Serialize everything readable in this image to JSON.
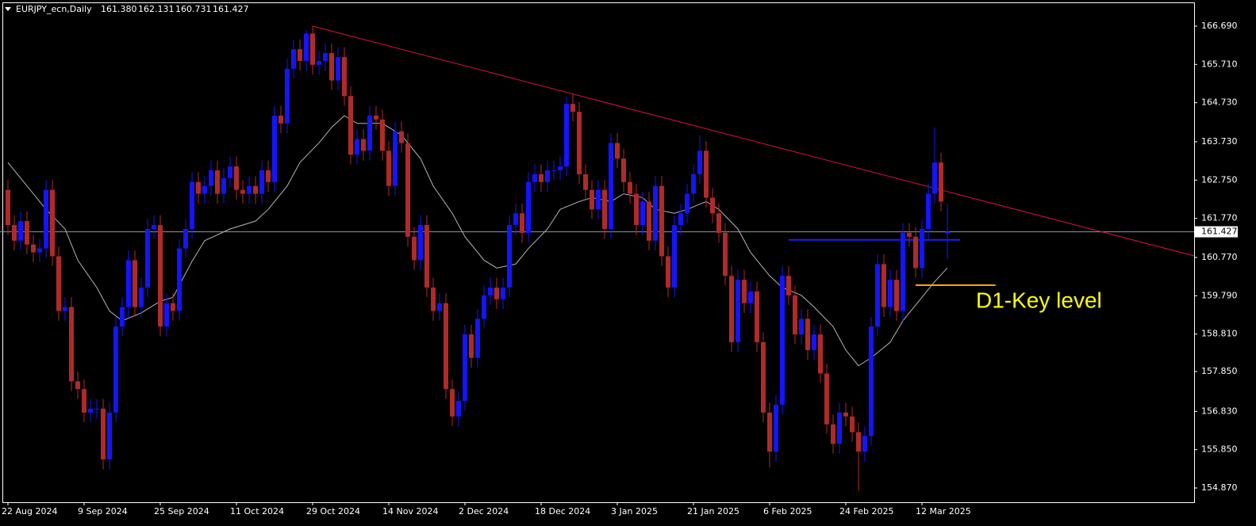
{
  "chart_data": {
    "type": "candlestick",
    "title": "EURJPY_ecn,Daily",
    "ohlc_labels": [
      "161.380",
      "162.131",
      "160.731",
      "161.427"
    ],
    "annotation": "D1-Key level",
    "categories": [
      "22 Aug 2024",
      null,
      null,
      null,
      null,
      null,
      null,
      null,
      null,
      null,
      null,
      null,
      "9 Sep 2024",
      null,
      null,
      null,
      null,
      null,
      null,
      null,
      null,
      null,
      null,
      null,
      "25 Sep 2024",
      null,
      null,
      null,
      null,
      null,
      null,
      null,
      null,
      null,
      null,
      null,
      "11 Oct 2024",
      null,
      null,
      null,
      null,
      null,
      null,
      null,
      null,
      null,
      null,
      null,
      "29 Oct 2024",
      null,
      null,
      null,
      null,
      null,
      null,
      null,
      null,
      null,
      null,
      null,
      "14 Nov 2024",
      null,
      null,
      null,
      null,
      null,
      null,
      null,
      null,
      null,
      null,
      null,
      "2 Dec 2024",
      null,
      null,
      null,
      null,
      null,
      null,
      null,
      null,
      null,
      null,
      null,
      "18 Dec 2024",
      null,
      null,
      null,
      null,
      null,
      null,
      null,
      null,
      null,
      null,
      null,
      "3 Jan 2025",
      null,
      null,
      null,
      null,
      null,
      null,
      null,
      null,
      null,
      null,
      null,
      "21 Jan 2025",
      null,
      null,
      null,
      null,
      null,
      null,
      null,
      null,
      null,
      null,
      null,
      "6 Feb 2025",
      null,
      null,
      null,
      null,
      null,
      null,
      null,
      null,
      null,
      null,
      null,
      "24 Feb 2025",
      null,
      null,
      null,
      null,
      null,
      null,
      null,
      null,
      null,
      null,
      null,
      "12 Mar 2025",
      null,
      null,
      null,
      null
    ],
    "open": [
      162.5,
      161.6,
      161.2,
      161.7,
      161.1,
      160.9,
      161.0,
      162.5,
      160.8,
      159.4,
      159.5,
      157.6,
      157.4,
      156.8,
      156.9,
      156.9,
      155.6,
      156.8,
      159.0,
      159.5,
      160.7,
      159.5,
      160.0,
      161.5,
      161.6,
      159.0,
      159.6,
      159.4,
      161.0,
      161.5,
      162.7,
      162.4,
      162.6,
      163.0,
      162.4,
      162.8,
      163.1,
      162.5,
      162.4,
      162.6,
      162.4,
      163.0,
      162.7,
      164.4,
      164.2,
      165.6,
      166.1,
      165.8,
      166.5,
      165.7,
      165.8,
      166.0,
      165.3,
      165.9,
      164.9,
      163.4,
      163.8,
      163.5,
      164.4,
      164.3,
      163.5,
      162.6,
      164.0,
      163.7,
      161.3,
      160.7,
      161.6,
      160.0,
      159.4,
      159.6,
      157.4,
      156.7,
      157.1,
      158.8,
      158.2,
      159.2,
      159.8,
      160.0,
      159.7,
      160.0,
      161.6,
      161.9,
      161.4,
      162.7,
      162.9,
      162.7,
      163.0,
      163.0,
      163.1,
      164.7,
      164.5,
      162.9,
      162.5,
      162.0,
      162.5,
      161.5,
      163.7,
      163.3,
      162.7,
      162.4,
      161.6,
      162.2,
      161.2,
      162.6,
      160.8,
      160.0,
      161.6,
      161.9,
      162.4,
      162.9,
      163.5,
      162.3,
      161.9,
      161.4,
      160.3,
      158.6,
      160.2,
      159.6,
      159.9,
      158.6,
      156.8,
      155.8,
      157.0,
      160.3,
      159.8,
      158.8,
      159.2,
      158.4,
      158.8,
      157.8,
      156.5,
      156.0,
      156.8,
      156.7,
      156.3,
      155.8,
      156.2,
      159.0,
      160.6,
      159.5,
      160.2,
      159.4,
      161.4,
      161.3,
      160.5,
      161.5,
      162.4,
      163.2,
      161.38
    ],
    "high": [
      162.75,
      161.85,
      161.95,
      161.95,
      161.35,
      161.25,
      162.75,
      162.75,
      161.05,
      159.75,
      159.75,
      157.85,
      157.65,
      157.15,
      157.15,
      157.15,
      157.05,
      159.25,
      159.75,
      160.95,
      160.95,
      160.25,
      161.75,
      161.85,
      161.85,
      159.85,
      159.85,
      161.25,
      161.75,
      162.95,
      162.95,
      162.85,
      163.25,
      163.25,
      163.05,
      163.35,
      163.35,
      162.75,
      162.85,
      162.85,
      163.25,
      163.25,
      164.65,
      164.65,
      165.85,
      166.35,
      166.35,
      166.6,
      166.69,
      166.05,
      166.25,
      166.25,
      166.15,
      166.15,
      165.15,
      164.05,
      164.05,
      164.65,
      164.65,
      164.55,
      163.75,
      164.25,
      164.25,
      163.95,
      161.55,
      161.85,
      161.85,
      160.25,
      159.85,
      159.85,
      157.65,
      157.35,
      159.05,
      159.05,
      159.45,
      160.05,
      160.25,
      160.25,
      160.25,
      161.85,
      162.15,
      162.15,
      162.95,
      163.15,
      163.15,
      163.25,
      163.25,
      163.35,
      164.9,
      164.95,
      164.75,
      163.15,
      162.75,
      162.75,
      162.75,
      163.95,
      163.95,
      163.55,
      162.95,
      162.65,
      162.45,
      162.45,
      162.85,
      162.85,
      161.05,
      161.85,
      162.15,
      162.65,
      163.15,
      163.9,
      163.75,
      162.55,
      162.15,
      161.65,
      160.55,
      160.45,
      160.45,
      160.15,
      160.15,
      158.85,
      157.05,
      157.25,
      160.55,
      160.55,
      160.05,
      159.45,
      159.45,
      159.05,
      159.05,
      158.05,
      156.75,
      157.05,
      157.05,
      156.95,
      156.55,
      156.45,
      159.25,
      160.85,
      160.85,
      160.45,
      160.45,
      161.65,
      161.65,
      161.55,
      161.75,
      162.65,
      164.1,
      163.45,
      162.131
    ],
    "low": [
      161.35,
      160.95,
      160.95,
      160.85,
      160.65,
      160.65,
      160.75,
      160.55,
      159.15,
      159.15,
      157.35,
      157.15,
      156.55,
      156.55,
      156.65,
      155.35,
      155.35,
      156.55,
      158.75,
      159.25,
      159.25,
      159.25,
      159.75,
      161.25,
      158.75,
      158.75,
      159.15,
      159.15,
      160.75,
      161.25,
      162.15,
      162.15,
      162.35,
      162.15,
      162.15,
      162.55,
      162.25,
      162.15,
      162.15,
      162.15,
      162.15,
      162.45,
      162.45,
      163.95,
      163.95,
      165.35,
      165.55,
      165.55,
      165.45,
      165.45,
      165.55,
      165.05,
      165.05,
      164.65,
      163.15,
      163.15,
      163.25,
      163.25,
      164.05,
      163.25,
      162.35,
      162.35,
      163.45,
      161.05,
      160.45,
      160.45,
      159.75,
      159.15,
      159.15,
      157.15,
      156.45,
      156.45,
      156.85,
      157.95,
      157.95,
      158.95,
      159.55,
      159.45,
      159.45,
      159.75,
      161.35,
      161.15,
      161.15,
      162.45,
      162.45,
      162.45,
      162.75,
      162.75,
      162.85,
      164.25,
      162.65,
      162.25,
      161.75,
      161.75,
      161.25,
      161.25,
      163.05,
      162.45,
      162.15,
      161.35,
      161.35,
      160.95,
      160.95,
      160.55,
      159.75,
      159.75,
      161.35,
      161.65,
      162.15,
      162.65,
      162.05,
      161.65,
      161.15,
      160.05,
      158.35,
      158.35,
      159.35,
      159.35,
      158.35,
      156.55,
      155.4,
      155.55,
      156.75,
      159.55,
      158.55,
      158.55,
      158.15,
      158.15,
      157.55,
      156.25,
      155.75,
      155.75,
      156.45,
      156.05,
      154.8,
      155.55,
      155.95,
      158.75,
      159.25,
      159.25,
      159.15,
      159.15,
      161.05,
      160.25,
      160.25,
      161.25,
      162.15,
      161.95,
      160.731
    ],
    "close": [
      161.6,
      161.2,
      161.7,
      161.1,
      160.9,
      161.0,
      162.5,
      160.8,
      159.4,
      159.5,
      157.6,
      157.4,
      156.8,
      156.9,
      156.9,
      155.6,
      156.8,
      159.0,
      159.5,
      160.7,
      159.5,
      160.0,
      161.5,
      161.6,
      159.0,
      159.6,
      159.4,
      161.0,
      161.5,
      162.7,
      162.4,
      162.6,
      163.0,
      162.4,
      162.8,
      163.1,
      162.5,
      162.4,
      162.6,
      162.4,
      163.0,
      162.7,
      164.4,
      164.2,
      165.6,
      166.1,
      165.8,
      166.5,
      165.7,
      165.8,
      166.0,
      165.3,
      165.9,
      164.9,
      163.4,
      163.8,
      163.5,
      164.4,
      164.3,
      163.5,
      162.6,
      164.0,
      163.7,
      161.3,
      160.7,
      161.6,
      160.0,
      159.4,
      159.6,
      157.4,
      156.7,
      157.1,
      158.8,
      158.2,
      159.2,
      159.8,
      160.0,
      159.7,
      160.0,
      161.6,
      161.9,
      161.4,
      162.7,
      162.9,
      162.7,
      163.0,
      163.0,
      163.1,
      164.7,
      164.5,
      162.9,
      162.5,
      162.0,
      162.5,
      161.5,
      163.7,
      163.3,
      162.7,
      162.4,
      161.6,
      162.2,
      161.2,
      162.6,
      160.8,
      160.0,
      161.6,
      161.9,
      162.4,
      162.9,
      163.5,
      162.3,
      161.9,
      161.4,
      160.3,
      158.6,
      160.2,
      159.6,
      159.9,
      158.6,
      156.8,
      155.8,
      157.0,
      160.3,
      159.8,
      158.8,
      159.2,
      158.4,
      158.8,
      157.8,
      156.5,
      156.0,
      156.8,
      156.7,
      156.3,
      155.8,
      156.2,
      159.0,
      160.6,
      159.5,
      160.2,
      159.4,
      161.4,
      161.3,
      160.5,
      161.5,
      162.4,
      163.2,
      162.2,
      161.427
    ],
    "up_color": "#1414ff",
    "down_color": "#b02a2a",
    "moving_average": {
      "color": "#b4b4b4",
      "x": [
        0,
        4,
        6,
        9,
        11,
        14,
        16,
        18,
        21,
        24,
        26,
        29,
        31,
        35,
        39,
        41,
        44,
        46,
        49,
        51,
        53,
        55,
        59,
        62,
        65,
        67,
        70,
        72,
        75,
        77,
        80,
        82,
        85,
        87,
        90,
        92,
        95,
        97,
        100,
        102,
        105,
        107,
        110,
        112,
        115,
        117,
        120,
        122,
        125,
        127,
        130,
        132,
        134,
        136,
        139,
        141,
        144,
        146,
        148
      ],
      "values": [
        163.2,
        162.4,
        162.0,
        161.5,
        160.7,
        160.0,
        159.4,
        159.15,
        159.35,
        159.65,
        159.75,
        160.67,
        161.2,
        161.5,
        161.7,
        162.0,
        162.6,
        163.2,
        163.7,
        164.1,
        164.4,
        164.2,
        164.2,
        163.9,
        163.3,
        162.6,
        161.9,
        161.3,
        160.7,
        160.5,
        160.6,
        161.0,
        161.5,
        162.0,
        162.2,
        162.3,
        162.2,
        162.4,
        162.3,
        162.0,
        161.9,
        162.0,
        162.2,
        162.0,
        161.5,
        160.9,
        160.3,
        160.0,
        159.8,
        159.5,
        159.0,
        158.4,
        158.0,
        158.2,
        158.6,
        159.15,
        159.75,
        160.15,
        160.5
      ]
    },
    "trend_line": {
      "x": [
        48,
        186.875
      ],
      "y": [
        166.69,
        160.81
      ],
      "color": "#e0103c"
    },
    "level_line": {
      "x": [
        123,
        150
      ],
      "y": [
        161.22,
        161.22
      ],
      "color": "#1a1aff"
    },
    "key_line": {
      "x": [
        143,
        155.6
      ],
      "y": [
        160.06,
        160.06
      ],
      "color": "#ffa500"
    },
    "current_price": {
      "value": 161.427,
      "label": "161.427"
    },
    "xlim": [
      -1.25,
      186.875
    ],
    "ylim": [
      154.505,
      167.359
    ],
    "yticks": [
      {
        "value": 166.69,
        "label": "166.690"
      },
      {
        "value": 165.71,
        "label": "165.710"
      },
      {
        "value": 164.73,
        "label": "164.730"
      },
      {
        "value": 163.73,
        "label": "163.730"
      },
      {
        "value": 162.75,
        "label": "162.750"
      },
      {
        "value": 161.77,
        "label": "161.770"
      },
      {
        "value": 160.77,
        "label": "160.770"
      },
      {
        "value": 159.79,
        "label": "159.790"
      },
      {
        "value": 158.81,
        "label": "158.810"
      },
      {
        "value": 157.85,
        "label": "157.850"
      },
      {
        "value": 156.83,
        "label": "156.830"
      },
      {
        "value": 155.85,
        "label": "155.850"
      },
      {
        "value": 154.87,
        "label": "154.870"
      }
    ]
  }
}
